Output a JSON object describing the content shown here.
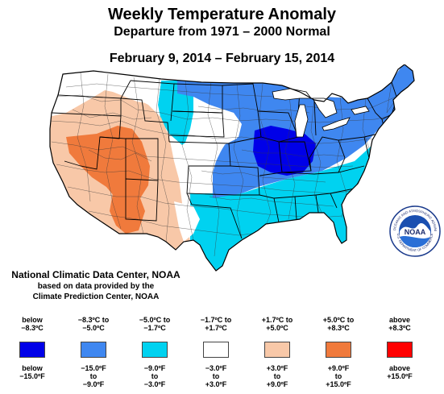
{
  "header": {
    "title": "Weekly Temperature Anomaly",
    "subtitle": "Departure from 1971 – 2000 Normal",
    "period": "February 9, 2014 – February 15, 2014"
  },
  "credit": {
    "line1": "National Climatic Data Center, NOAA",
    "line2": "based on data provided by the",
    "line3": "Climate Prediction Center, NOAA"
  },
  "logo": {
    "text": "NOAA",
    "ring_top": "NATIONAL OCEANIC AND ATMOSPHERIC ADMINISTRATION",
    "ring_bottom": "U.S. DEPARTMENT OF COMMERCE"
  },
  "colors": {
    "below_8_3": "#0000e8",
    "minus_8_3_to_5": "#3f87f0",
    "minus_5_to_1_7": "#00d2f0",
    "near_normal": "#ffffff",
    "plus_1_7_to_5": "#f8c8a8",
    "plus_5_to_8_3": "#f07a3c",
    "above_8_3": "#ff0000"
  },
  "legend": [
    {
      "c1": "below",
      "c2": "−8.3ºC",
      "color": "#0000e8",
      "f1": "below",
      "f2": "−15.0ºF",
      "f3": ""
    },
    {
      "c1": "−8.3ºC to",
      "c2": "−5.0ºC",
      "color": "#3f87f0",
      "f1": "−15.0ºF",
      "f2": "to",
      "f3": "−9.0ºF"
    },
    {
      "c1": "−5.0ºC to",
      "c2": "−1.7ºC",
      "color": "#00d2f0",
      "f1": "−9.0ºF",
      "f2": "to",
      "f3": "−3.0ºF"
    },
    {
      "c1": "−1.7ºC to",
      "c2": "+1.7ºC",
      "color": "#ffffff",
      "f1": "−3.0ºF",
      "f2": "to",
      "f3": "+3.0ºF"
    },
    {
      "c1": "+1.7ºC to",
      "c2": "+5.0ºC",
      "color": "#f8c8a8",
      "f1": "+3.0ºF",
      "f2": "to",
      "f3": "+9.0ºF"
    },
    {
      "c1": "+5.0ºC to",
      "c2": "+8.3ºC",
      "color": "#f07a3c",
      "f1": "+9.0ºF",
      "f2": "to",
      "f3": "+15.0ºF"
    },
    {
      "c1": "above",
      "c2": "+8.3ºC",
      "color": "#ff0000",
      "f1": "above",
      "f2": "+15.0ºF",
      "f3": ""
    }
  ]
}
